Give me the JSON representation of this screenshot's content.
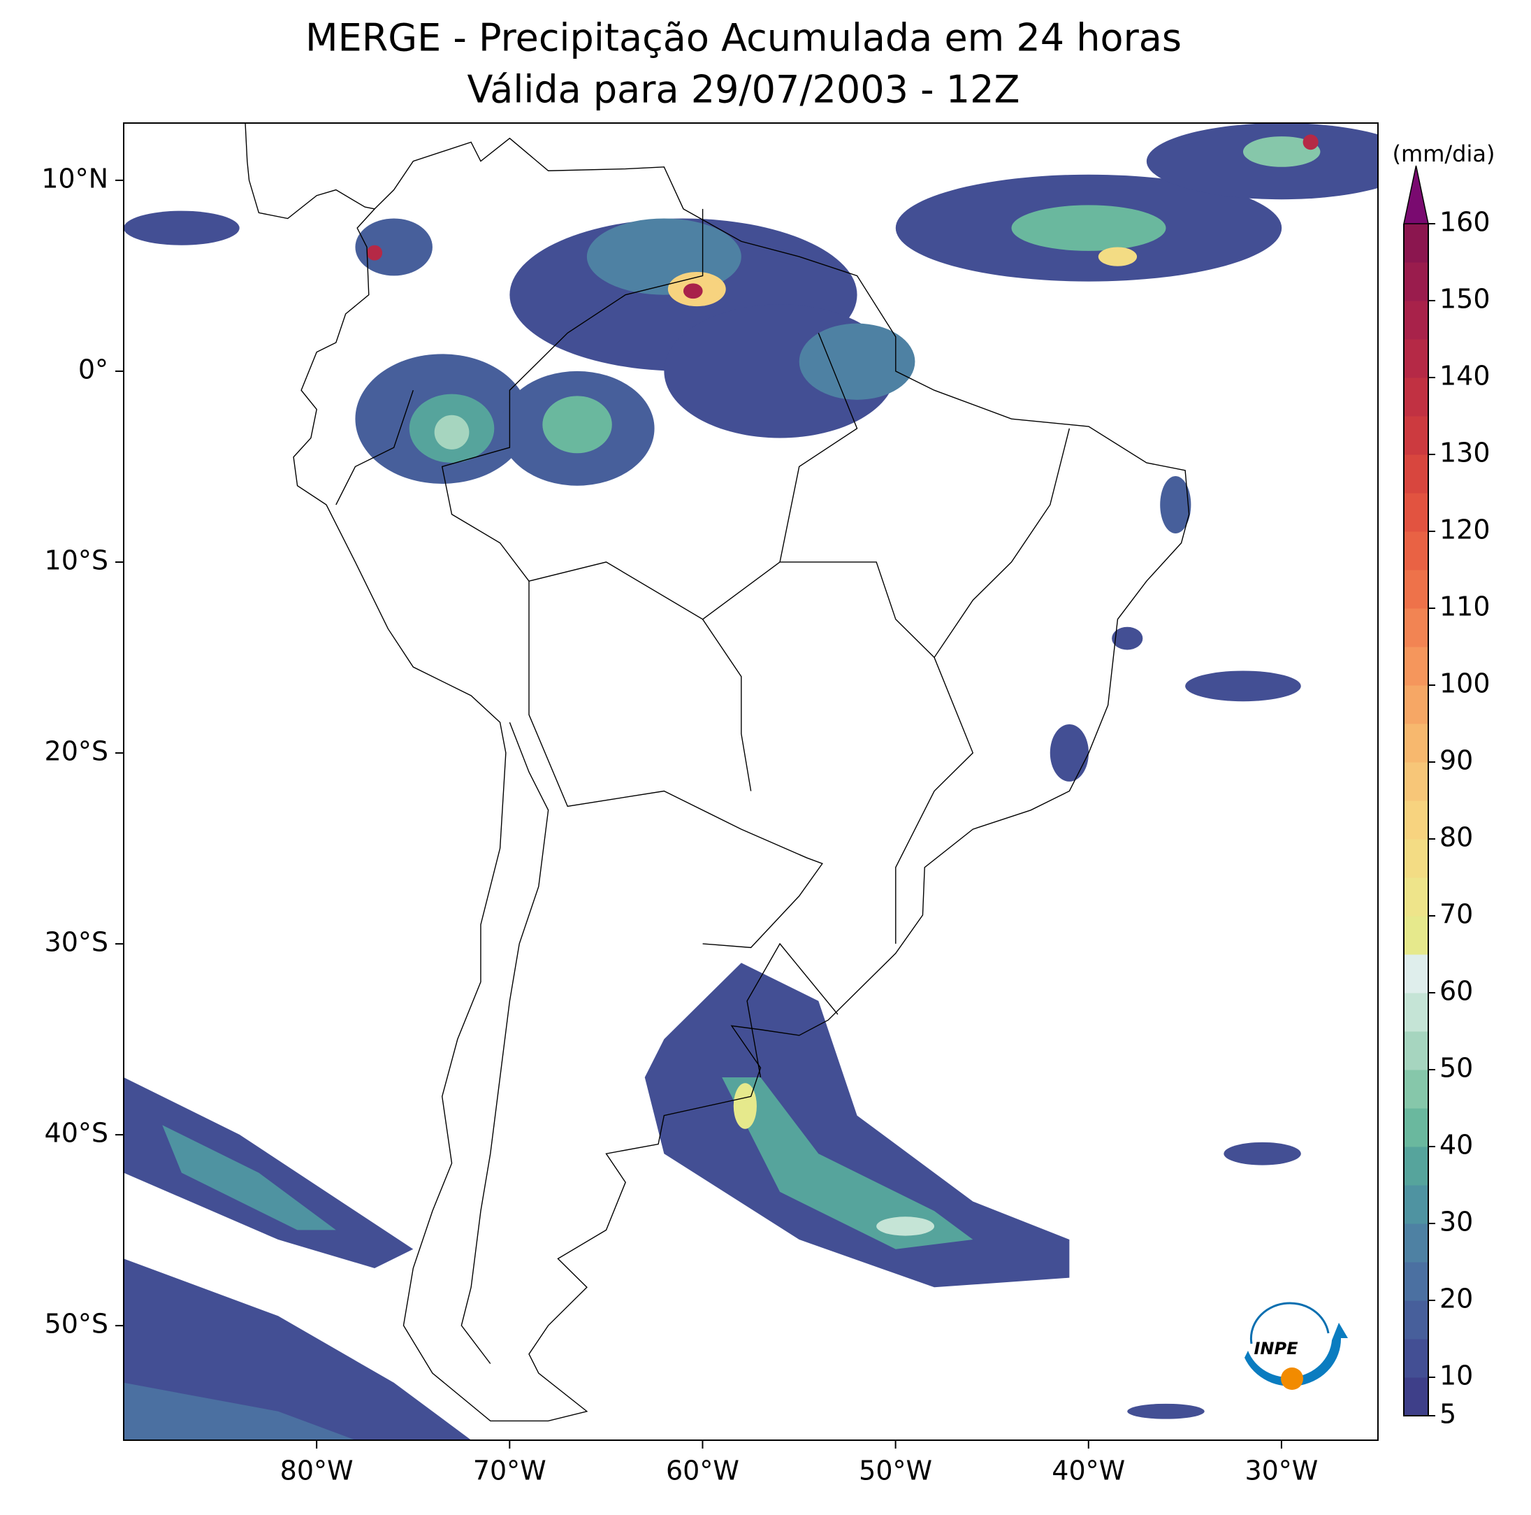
{
  "chart_data": {
    "type": "map",
    "title": "MERGE - Precipitação Acumulada em 24 horas",
    "subtitle": "Válida para 29/07/2003 - 12Z",
    "xlim": [
      -90,
      -25
    ],
    "ylim": [
      -56,
      13
    ],
    "xticks": [
      {
        "value": -80,
        "label": "80°W"
      },
      {
        "value": -70,
        "label": "70°W"
      },
      {
        "value": -60,
        "label": "60°W"
      },
      {
        "value": -50,
        "label": "50°W"
      },
      {
        "value": -40,
        "label": "40°W"
      },
      {
        "value": -30,
        "label": "30°W"
      }
    ],
    "yticks": [
      {
        "value": 10,
        "label": "10°N"
      },
      {
        "value": 0,
        "label": "0°"
      },
      {
        "value": -10,
        "label": "10°S"
      },
      {
        "value": -20,
        "label": "20°S"
      },
      {
        "value": -30,
        "label": "30°S"
      },
      {
        "value": -40,
        "label": "40°S"
      },
      {
        "value": -50,
        "label": "50°S"
      }
    ],
    "colorbar": {
      "label": "(mm/dia)",
      "lim": [
        5,
        160
      ],
      "ticks": [
        5,
        10,
        20,
        30,
        40,
        50,
        60,
        70,
        80,
        90,
        100,
        110,
        120,
        130,
        140,
        150,
        160
      ],
      "colors": [
        "#3e3f89",
        "#434f94",
        "#475f9b",
        "#4b70a1",
        "#4e81a3",
        "#4f93a1",
        "#56a49c",
        "#6ab89e",
        "#86c7aa",
        "#a6d5bf",
        "#c5e4d6",
        "#dfeeec",
        "#e6e98c",
        "#eee48a",
        "#f3dc84",
        "#f7d37f",
        "#f7c678",
        "#f7b86e",
        "#f6a765",
        "#f5965c",
        "#f28453",
        "#ee724a",
        "#e96244",
        "#e25340",
        "#d8463e",
        "#cc3a3f",
        "#c13142",
        "#b52946",
        "#a8224a",
        "#9a1c4d",
        "#8b164f"
      ],
      "extend_color": "#7a0a70"
    },
    "logo_text": "INPE"
  }
}
